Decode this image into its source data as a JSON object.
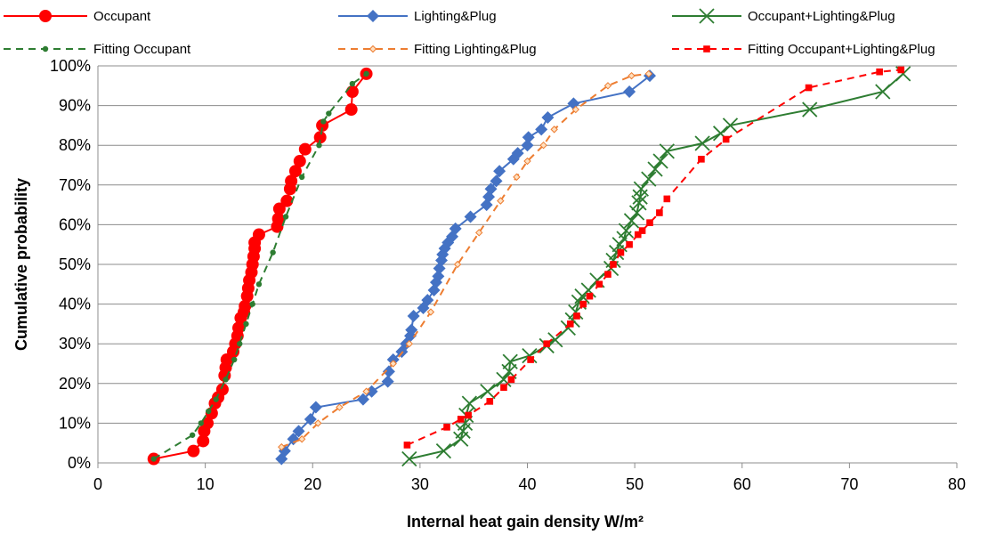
{
  "chart_data": {
    "type": "line",
    "xlabel": "Internal heat gain density W/m²",
    "ylabel": "Cumulative probability",
    "xlim": [
      0,
      80
    ],
    "ylim": [
      0,
      100
    ],
    "x_ticks": [
      "0",
      "10",
      "20",
      "30",
      "40",
      "50",
      "60",
      "70",
      "80"
    ],
    "y_ticks": [
      "0%",
      "10%",
      "20%",
      "30%",
      "40%",
      "50%",
      "60%",
      "70%",
      "80%",
      "90%",
      "100%"
    ],
    "grid": "horizontal",
    "legend_position": "top",
    "series": [
      {
        "name": "Occupant",
        "color": "#ff0000",
        "marker": "circle",
        "line": "solid",
        "points": [
          [
            5.2,
            1
          ],
          [
            8.9,
            3
          ],
          [
            9.8,
            5.5
          ],
          [
            9.9,
            8
          ],
          [
            10.2,
            10
          ],
          [
            10.6,
            12.5
          ],
          [
            10.9,
            15
          ],
          [
            11.2,
            16.5
          ],
          [
            11.6,
            18.5
          ],
          [
            11.8,
            22
          ],
          [
            11.9,
            24
          ],
          [
            12.0,
            26
          ],
          [
            12.6,
            28
          ],
          [
            12.8,
            30
          ],
          [
            13.0,
            32
          ],
          [
            13.1,
            34
          ],
          [
            13.3,
            36.5
          ],
          [
            13.6,
            38
          ],
          [
            13.7,
            39.5
          ],
          [
            13.9,
            42
          ],
          [
            14.0,
            44
          ],
          [
            14.1,
            46
          ],
          [
            14.3,
            48
          ],
          [
            14.4,
            50
          ],
          [
            14.5,
            52
          ],
          [
            14.6,
            54
          ],
          [
            14.6,
            55.5
          ],
          [
            15.0,
            57.5
          ],
          [
            16.7,
            59.5
          ],
          [
            16.8,
            61.5
          ],
          [
            16.9,
            64
          ],
          [
            17.6,
            66
          ],
          [
            17.9,
            69
          ],
          [
            18.0,
            71
          ],
          [
            18.4,
            73.5
          ],
          [
            18.8,
            76
          ],
          [
            19.3,
            79
          ],
          [
            20.7,
            82
          ],
          [
            20.9,
            85
          ],
          [
            23.6,
            89
          ],
          [
            23.7,
            93.5
          ],
          [
            25.0,
            98
          ]
        ]
      },
      {
        "name": "Lighting&Plug",
        "color": "#4472c4",
        "marker": "diamond",
        "line": "solid",
        "points": [
          [
            17.1,
            1
          ],
          [
            17.4,
            3
          ],
          [
            18.2,
            6
          ],
          [
            18.7,
            8
          ],
          [
            19.8,
            11
          ],
          [
            20.3,
            14
          ],
          [
            24.7,
            16
          ],
          [
            25.5,
            18
          ],
          [
            27.0,
            20.5
          ],
          [
            27.1,
            23
          ],
          [
            27.5,
            26
          ],
          [
            28.3,
            28
          ],
          [
            28.7,
            30
          ],
          [
            29.1,
            32
          ],
          [
            29.2,
            33.5
          ],
          [
            29.4,
            37
          ],
          [
            30.3,
            39
          ],
          [
            30.7,
            41
          ],
          [
            31.3,
            43.5
          ],
          [
            31.5,
            45.5
          ],
          [
            31.7,
            47
          ],
          [
            31.8,
            49
          ],
          [
            32.0,
            51
          ],
          [
            32.1,
            52.5
          ],
          [
            32.3,
            54
          ],
          [
            32.6,
            55.5
          ],
          [
            33.0,
            57
          ],
          [
            33.3,
            59
          ],
          [
            34.7,
            62
          ],
          [
            36.2,
            65
          ],
          [
            36.4,
            67
          ],
          [
            36.6,
            69
          ],
          [
            37.1,
            71
          ],
          [
            37.4,
            73.5
          ],
          [
            38.7,
            76.5
          ],
          [
            39.1,
            78
          ],
          [
            40.0,
            80
          ],
          [
            40.1,
            82
          ],
          [
            41.3,
            84
          ],
          [
            41.9,
            87
          ],
          [
            44.3,
            90.5
          ],
          [
            49.5,
            93.5
          ],
          [
            51.4,
            97.5
          ]
        ]
      },
      {
        "name": "Occupant+Lighting&Plug",
        "color": "#2e7d32",
        "marker": "x",
        "line": "solid",
        "points": [
          [
            29.0,
            1
          ],
          [
            32.2,
            3
          ],
          [
            33.8,
            6
          ],
          [
            34.0,
            8
          ],
          [
            34.2,
            10
          ],
          [
            34.3,
            12
          ],
          [
            34.6,
            15
          ],
          [
            36.3,
            18
          ],
          [
            37.8,
            21
          ],
          [
            38.3,
            23
          ],
          [
            38.4,
            25.5
          ],
          [
            40.2,
            27
          ],
          [
            41.8,
            29.5
          ],
          [
            42.6,
            31
          ],
          [
            43.8,
            34
          ],
          [
            44.2,
            36
          ],
          [
            44.5,
            38
          ],
          [
            44.8,
            40.5
          ],
          [
            45.1,
            42
          ],
          [
            45.7,
            43.5
          ],
          [
            46.5,
            46
          ],
          [
            47.8,
            49
          ],
          [
            48.0,
            51
          ],
          [
            48.3,
            53
          ],
          [
            48.6,
            55
          ],
          [
            49.0,
            56.5
          ],
          [
            49.2,
            58.5
          ],
          [
            49.7,
            61
          ],
          [
            50.2,
            63
          ],
          [
            50.4,
            65.5
          ],
          [
            50.5,
            67
          ],
          [
            50.6,
            69
          ],
          [
            51.3,
            71.5
          ],
          [
            51.9,
            74
          ],
          [
            52.4,
            76
          ],
          [
            53.0,
            78.5
          ],
          [
            56.3,
            80.5
          ],
          [
            58.0,
            83
          ],
          [
            58.9,
            85
          ],
          [
            66.3,
            89
          ],
          [
            73.1,
            93.5
          ],
          [
            75.0,
            98
          ]
        ]
      },
      {
        "name": "Fitting Occupant",
        "color": "#2e7d32",
        "marker": "dot",
        "line": "dashed",
        "points": [
          [
            5.2,
            1
          ],
          [
            8.8,
            7
          ],
          [
            9.6,
            10
          ],
          [
            10.3,
            13
          ],
          [
            11.0,
            16
          ],
          [
            11.9,
            21
          ],
          [
            12.7,
            26
          ],
          [
            13.2,
            30
          ],
          [
            13.8,
            35
          ],
          [
            14.4,
            40
          ],
          [
            15.0,
            45
          ],
          [
            16.3,
            53
          ],
          [
            17.5,
            62
          ],
          [
            19.0,
            72
          ],
          [
            20.6,
            80
          ],
          [
            21.0,
            86
          ],
          [
            21.5,
            88
          ],
          [
            23.7,
            95.5
          ],
          [
            25.0,
            98
          ]
        ]
      },
      {
        "name": "Fitting Lighting&Plug",
        "color": "#ed7d31",
        "marker": "open-diamond",
        "line": "dashed",
        "points": [
          [
            17.1,
            4
          ],
          [
            19.0,
            6
          ],
          [
            20.5,
            10
          ],
          [
            22.5,
            14
          ],
          [
            25.0,
            18
          ],
          [
            27.5,
            25
          ],
          [
            29.0,
            30
          ],
          [
            31.0,
            38
          ],
          [
            33.5,
            50
          ],
          [
            35.5,
            58
          ],
          [
            37.5,
            66
          ],
          [
            39.0,
            72
          ],
          [
            40.0,
            76
          ],
          [
            41.5,
            80
          ],
          [
            42.5,
            84
          ],
          [
            44.5,
            89
          ],
          [
            47.5,
            95
          ],
          [
            49.7,
            97.5
          ],
          [
            51.3,
            98
          ]
        ]
      },
      {
        "name": "Fitting Occupant+Lighting&Plug",
        "color": "#ff0000",
        "marker": "square",
        "line": "dashed",
        "points": [
          [
            28.8,
            4.5
          ],
          [
            32.5,
            9
          ],
          [
            33.8,
            11
          ],
          [
            34.5,
            12
          ],
          [
            36.5,
            15.5
          ],
          [
            37.8,
            19
          ],
          [
            38.5,
            21
          ],
          [
            40.3,
            26
          ],
          [
            41.8,
            30
          ],
          [
            44.0,
            35
          ],
          [
            44.6,
            37
          ],
          [
            45.2,
            40
          ],
          [
            45.8,
            42
          ],
          [
            46.7,
            45
          ],
          [
            47.5,
            47.5
          ],
          [
            48.0,
            50
          ],
          [
            48.7,
            53
          ],
          [
            49.5,
            55
          ],
          [
            50.3,
            57.5
          ],
          [
            50.7,
            58.5
          ],
          [
            51.4,
            60.5
          ],
          [
            52.3,
            63
          ],
          [
            53.0,
            66.5
          ],
          [
            56.2,
            76.5
          ],
          [
            58.5,
            81.5
          ],
          [
            66.2,
            94.5
          ],
          [
            72.8,
            98.5
          ],
          [
            74.8,
            99
          ]
        ]
      }
    ]
  }
}
